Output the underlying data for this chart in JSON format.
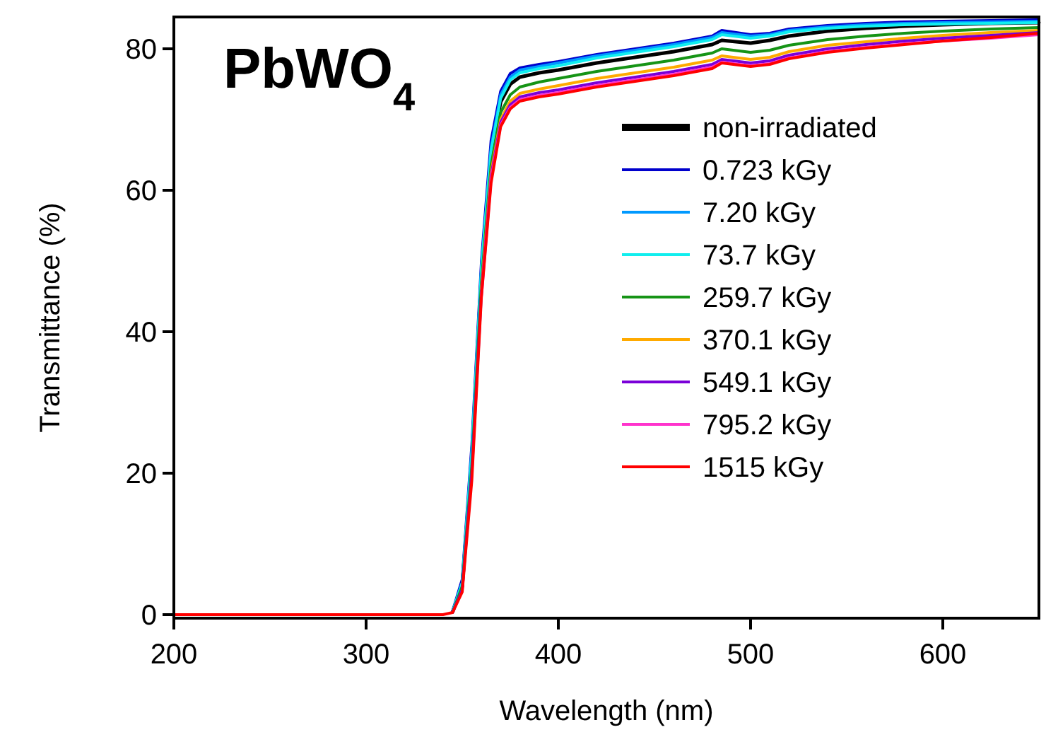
{
  "chart_data": {
    "type": "line",
    "title": "PbWO$_{4}$",
    "xlabel": "Wavelength (nm)",
    "ylabel": "Transmittance (%)",
    "x": [
      200,
      250,
      300,
      340,
      345,
      350,
      355,
      360,
      365,
      370,
      375,
      380,
      390,
      400,
      420,
      440,
      460,
      480,
      485,
      500,
      510,
      520,
      540,
      560,
      580,
      600,
      625,
      650
    ],
    "xlim": [
      200,
      650
    ],
    "ylim": [
      -0.5,
      84.5
    ],
    "xticks": [
      200,
      300,
      400,
      500,
      600
    ],
    "yticks": [
      0,
      20,
      40,
      60,
      80
    ],
    "grid": false,
    "legend": "right",
    "marker": "none",
    "line_style": "solid",
    "series": [
      {
        "name": "non-irradiated",
        "color": "#000000",
        "values": [
          null,
          null,
          null,
          null,
          0.4,
          4,
          22,
          48,
          65,
          72.5,
          75,
          76,
          76.6,
          77,
          78,
          78.8,
          79.6,
          80.6,
          81.2,
          80.8,
          81.2,
          81.8,
          82.5,
          82.9,
          83.2,
          83.4,
          83.6,
          83.7
        ]
      },
      {
        "name": "0.723 kGy",
        "color": "#0000cc",
        "values": [
          null,
          null,
          null,
          null,
          0.5,
          5,
          24,
          50,
          67,
          74,
          76.5,
          77.3,
          77.8,
          78.2,
          79.2,
          80,
          80.8,
          81.8,
          82.6,
          82,
          82.2,
          82.8,
          83.3,
          83.6,
          83.8,
          83.9,
          84,
          84.1
        ]
      },
      {
        "name": "7.20 kGy",
        "color": "#0099ff",
        "values": [
          null,
          null,
          null,
          null,
          0.4,
          4.5,
          23,
          49,
          66,
          73.5,
          76,
          77,
          77.5,
          78,
          79,
          79.8,
          80.6,
          81.6,
          82.3,
          81.8,
          82,
          82.6,
          83.1,
          83.4,
          83.6,
          83.7,
          83.8,
          83.9
        ]
      },
      {
        "name": "73.7 kGy",
        "color": "#11eeee",
        "values": [
          null,
          null,
          null,
          null,
          0.4,
          4.5,
          23,
          49,
          65.5,
          73,
          75.6,
          76.6,
          77.2,
          77.6,
          78.7,
          79.5,
          80.3,
          81.3,
          82,
          81.5,
          81.8,
          82.4,
          82.9,
          83.2,
          83.4,
          83.5,
          83.6,
          83.7
        ]
      },
      {
        "name": "259.7 kGy",
        "color": "#169416",
        "values": [
          null,
          null,
          null,
          null,
          0.3,
          4,
          21,
          47,
          63.5,
          71,
          73.5,
          74.6,
          75.3,
          75.8,
          76.8,
          77.6,
          78.4,
          79.4,
          80,
          79.5,
          79.8,
          80.5,
          81.3,
          81.8,
          82.2,
          82.5,
          82.8,
          83
        ]
      },
      {
        "name": "370.1 kGy",
        "color": "#ffaa00",
        "values": [
          null,
          null,
          null,
          null,
          null,
          null,
          null,
          46,
          62.5,
          70,
          72.6,
          73.7,
          74.3,
          74.8,
          75.8,
          76.6,
          77.4,
          78.4,
          79,
          78.5,
          78.8,
          79.6,
          80.5,
          81,
          81.5,
          81.9,
          82.3,
          82.6
        ]
      },
      {
        "name": "549.1 kGy",
        "color": "#7a00d8",
        "values": [
          null,
          null,
          null,
          null,
          0.3,
          3.5,
          20,
          45.5,
          62,
          69.6,
          72.1,
          73.2,
          73.8,
          74.2,
          75.2,
          76,
          76.8,
          77.8,
          78.5,
          78,
          78.3,
          79.1,
          80,
          80.6,
          81.1,
          81.5,
          81.9,
          82.3
        ]
      },
      {
        "name": "795.2 kGy",
        "color": "#ff33cc",
        "values": [
          null,
          null,
          null,
          null,
          null,
          null,
          null,
          45,
          61.5,
          69.2,
          71.7,
          72.8,
          73.4,
          73.8,
          74.8,
          75.6,
          76.4,
          77.4,
          78.1,
          77.6,
          77.9,
          78.7,
          79.6,
          80.2,
          80.7,
          81.1,
          81.5,
          82
        ]
      },
      {
        "name": "1515 kGy",
        "color": "#ff0000",
        "values": [
          0,
          0,
          0,
          0,
          0.3,
          3.2,
          19,
          45,
          61,
          69,
          71.5,
          72.6,
          73.2,
          73.6,
          74.6,
          75.4,
          76.2,
          77.2,
          78,
          77.5,
          77.8,
          78.6,
          79.5,
          80.1,
          80.6,
          81.1,
          81.6,
          82.2
        ]
      }
    ]
  }
}
